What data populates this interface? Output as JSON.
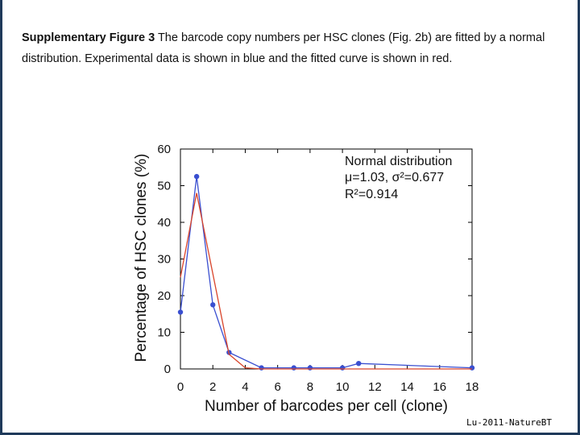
{
  "caption": {
    "label": "Supplementary Figure 3",
    "line1": " The barcode copy numbers per HSC clones (Fig. 2b) are fitted by a normal",
    "line2": "distribution. Experimental data is shown in blue and the fitted curve is shown in red."
  },
  "credit": "Lu-2011-NatureBT",
  "chart_data": {
    "type": "line",
    "title": "",
    "xlabel": "Number of barcodes per cell (clone)",
    "ylabel": "Percentage of HSC clones (%)",
    "xlim": [
      0,
      18
    ],
    "ylim": [
      0,
      60
    ],
    "xticks": [
      0,
      2,
      4,
      6,
      8,
      10,
      12,
      14,
      16,
      18
    ],
    "yticks": [
      0,
      10,
      20,
      30,
      40,
      50,
      60
    ],
    "grid": false,
    "annotation": {
      "line1": "Normal distribution",
      "line2": "μ=1.03, σ²=0.677",
      "line3": "R²=0.914",
      "placement": "top-right"
    },
    "series": [
      {
        "role": "experimental",
        "color": "#3a4fd0",
        "markers": true,
        "x": [
          0,
          1,
          2,
          3,
          5,
          7,
          8,
          10,
          11,
          18
        ],
        "y": [
          15.5,
          52.5,
          17.5,
          4.5,
          0.3,
          0.3,
          0.3,
          0.3,
          1.5,
          0.3
        ]
      },
      {
        "role": "fit",
        "color": "#d9442a",
        "markers": false,
        "x": [
          0,
          1,
          2,
          3,
          4,
          5,
          18
        ],
        "y": [
          25,
          48,
          26,
          4,
          0.3,
          0,
          0
        ]
      }
    ]
  }
}
